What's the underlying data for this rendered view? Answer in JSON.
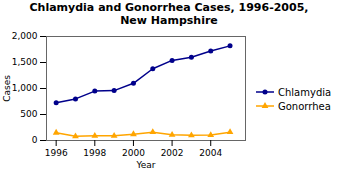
{
  "chart_data": {
    "type": "line",
    "title": "Chlamydia and Gonorrhea Cases, 1996-2005,\nNew Hampshire",
    "xlabel": "Year",
    "ylabel": "Cases",
    "x": [
      1996,
      1997,
      1998,
      1999,
      2000,
      2001,
      2002,
      2003,
      2004,
      2005
    ],
    "series": [
      {
        "name": "Chlamydia",
        "color": "#00008B",
        "marker": "circle",
        "line_style": "solid",
        "values": [
          725,
          800,
          950,
          960,
          1100,
          1380,
          1540,
          1600,
          1720,
          1820
        ]
      },
      {
        "name": "Gonorrhea",
        "color": "#FFA500",
        "marker": "triangle",
        "line_style": "solid",
        "values": [
          150,
          80,
          90,
          90,
          120,
          160,
          110,
          100,
          105,
          160
        ]
      }
    ],
    "xlim": [
      1995.5,
      2005.8
    ],
    "xticks": [
      1996,
      1998,
      2000,
      2002,
      2004
    ],
    "ylim": [
      0,
      2000
    ],
    "yticks": [
      0,
      500,
      {
        "value": 1000,
        "label": "1,000"
      },
      {
        "value": 1500,
        "label": "1,500"
      },
      {
        "value": 2000,
        "label": "2,000"
      }
    ],
    "grid": false,
    "legend": "right"
  }
}
